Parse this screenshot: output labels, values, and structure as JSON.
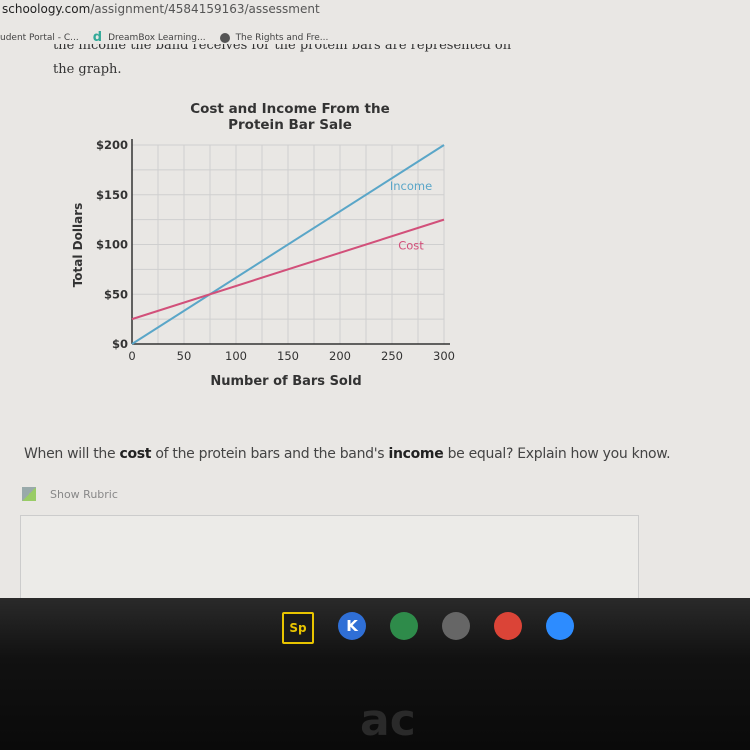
{
  "browser": {
    "url_host": "schoology.com",
    "url_path": "/assignment/4584159163/assessment",
    "bookmarks": [
      "udent Portal - C...",
      "DreamBox Learning...",
      "The Rights and Fre..."
    ]
  },
  "content": {
    "clipped_line": "the income the band receives for the protein bars are represented on",
    "graph_line": "the graph.",
    "question_parts": [
      "When will the ",
      "cost",
      " of the protein bars and the band's ",
      "income",
      " be equal? Explain how you know."
    ],
    "show_rubric": "Show Rubric"
  },
  "taskbar": {
    "apps": [
      {
        "name": "spark-icon",
        "label": "Sp",
        "color": "#e8c400"
      },
      {
        "name": "k-app-icon",
        "label": "K",
        "color": "#2f6fd6"
      },
      {
        "name": "desmos-icon",
        "label": "",
        "color": "#2e8b4a"
      },
      {
        "name": "camera-icon",
        "label": "",
        "color": "#666666"
      },
      {
        "name": "chrome-icon",
        "label": "",
        "color": "#db4437"
      },
      {
        "name": "zoom-icon",
        "label": "",
        "color": "#2d8cff"
      }
    ],
    "logo": "acer"
  },
  "chart_data": {
    "type": "line",
    "title": "Cost and Income From the Protein Bar Sale",
    "title_lines": [
      "Cost and Income From the",
      "Protein Bar Sale"
    ],
    "xlabel": "Number of Bars Sold",
    "ylabel": "Total Dollars",
    "xlim": [
      0,
      300
    ],
    "ylim": [
      0,
      200
    ],
    "grid": true,
    "x_ticks": [
      0,
      50,
      100,
      150,
      200,
      250,
      300
    ],
    "x_tick_labels": [
      "0",
      "50",
      "100",
      "150",
      "200",
      "250",
      "300"
    ],
    "y_ticks": [
      0,
      50,
      100,
      150,
      200
    ],
    "y_tick_labels": [
      "$0",
      "$50",
      "$100",
      "$150",
      "$200"
    ],
    "series": [
      {
        "name": "Income",
        "color": "#5aa6c8",
        "x": [
          0,
          300
        ],
        "y": [
          0,
          200
        ]
      },
      {
        "name": "Cost",
        "color": "#d2507a",
        "x": [
          0,
          300
        ],
        "y": [
          25,
          125
        ]
      }
    ]
  }
}
